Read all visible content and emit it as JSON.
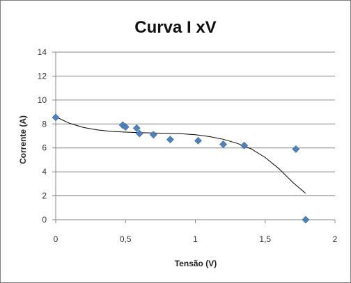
{
  "chart_data": {
    "type": "scatter",
    "title": "Curva I xV",
    "xlabel": "Tensão (V)",
    "ylabel": "Corrente (A)",
    "xlim": [
      0,
      2
    ],
    "ylim": [
      0,
      14
    ],
    "x_ticks": [
      0,
      0.5,
      1,
      1.5,
      2
    ],
    "x_tick_labels": [
      "0",
      "0,5",
      "1",
      "1,5",
      "2"
    ],
    "y_ticks": [
      0,
      2,
      4,
      6,
      8,
      10,
      12,
      14
    ],
    "y_tick_labels": [
      "0",
      "2",
      "4",
      "6",
      "8",
      "10",
      "12",
      "14"
    ],
    "grid": "horizontal",
    "legend": "none",
    "series": [
      {
        "marker": "diamond",
        "color": "#4f81bd",
        "x": [
          0,
          0.48,
          0.5,
          0.58,
          0.6,
          0.7,
          0.82,
          1.02,
          1.2,
          1.35,
          1.72,
          1.79
        ],
        "y": [
          8.55,
          7.9,
          7.75,
          7.65,
          7.2,
          7.1,
          6.7,
          6.6,
          6.3,
          6.2,
          5.9,
          0.0
        ]
      }
    ],
    "trendline": {
      "type": "polynomial",
      "color": "#000000",
      "x": [
        0,
        0.1,
        0.2,
        0.3,
        0.4,
        0.5,
        0.6,
        0.7,
        0.8,
        0.9,
        1.0,
        1.1,
        1.2,
        1.3,
        1.4,
        1.5,
        1.6,
        1.7,
        1.79
      ],
      "y": [
        8.6,
        8.05,
        7.7,
        7.5,
        7.38,
        7.32,
        7.28,
        7.25,
        7.22,
        7.18,
        7.1,
        6.95,
        6.72,
        6.38,
        5.92,
        5.2,
        4.25,
        3.1,
        2.2
      ]
    }
  }
}
